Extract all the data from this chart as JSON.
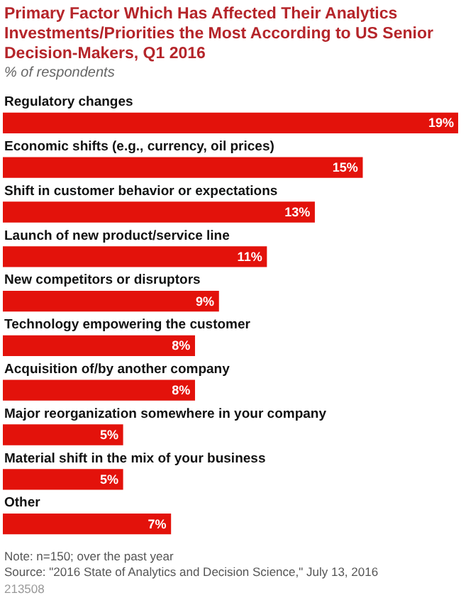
{
  "chart_data": {
    "type": "bar",
    "orientation": "horizontal",
    "title": "Primary Factor Which Has Affected Their Analytics Investments/Priorities the Most According to US Senior Decision-Makers, Q1 2016",
    "subtitle": "% of respondents",
    "categories": [
      "Regulatory changes",
      "Economic shifts (e.g., currency, oil prices)",
      "Shift in customer behavior or expectations",
      "Launch of new product/service line",
      "New competitors or disruptors",
      "Technology empowering the customer",
      "Acquisition of/by another company",
      "Major reorganization somewhere in your company",
      "Material shift in the mix of your business",
      "Other"
    ],
    "values": [
      19,
      15,
      13,
      11,
      9,
      8,
      8,
      5,
      5,
      7
    ],
    "value_labels": [
      "19%",
      "15%",
      "13%",
      "11%",
      "9%",
      "8%",
      "8%",
      "5%",
      "5%",
      "7%"
    ],
    "color": "#e3120b",
    "legend": false,
    "annotations": [
      "Note: n=150; over the past year",
      "Source: \"2016 State of Analytics and Decision Science,\" July 13, 2016",
      "213508"
    ]
  }
}
